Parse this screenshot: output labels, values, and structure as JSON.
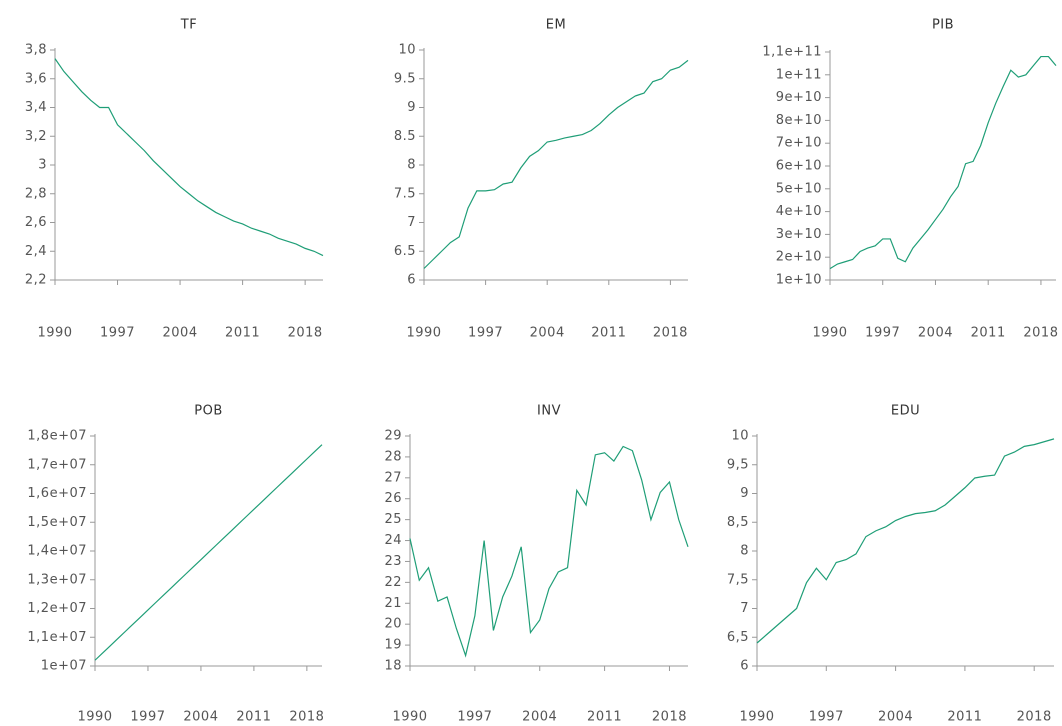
{
  "chart_data": [
    {
      "type": "line",
      "title": "TF",
      "color": "#1f9e77",
      "x": [
        1990,
        1991,
        1992,
        1993,
        1994,
        1995,
        1996,
        1997,
        1998,
        1999,
        2000,
        2001,
        2002,
        2003,
        2004,
        2005,
        2006,
        2007,
        2008,
        2009,
        2010,
        2011,
        2012,
        2013,
        2014,
        2015,
        2016,
        2017,
        2018,
        2019,
        2020
      ],
      "values": [
        3.74,
        3.65,
        3.58,
        3.51,
        3.45,
        3.4,
        3.4,
        3.28,
        3.22,
        3.16,
        3.1,
        3.03,
        2.97,
        2.91,
        2.85,
        2.8,
        2.75,
        2.71,
        2.67,
        2.64,
        2.61,
        2.59,
        2.56,
        2.54,
        2.52,
        2.49,
        2.47,
        2.45,
        2.42,
        2.4,
        2.37
      ],
      "xlim": [
        1990,
        2020
      ],
      "xticks": [
        1990,
        1997,
        2004,
        2011,
        2018
      ],
      "ylim": [
        2.2,
        3.8
      ],
      "yticks": [
        {
          "value": 2.2,
          "label": "2,2"
        },
        {
          "value": 2.4,
          "label": "2,4"
        },
        {
          "value": 2.6,
          "label": "2,6"
        },
        {
          "value": 2.8,
          "label": "2,8"
        },
        3,
        {
          "value": 3.2,
          "label": "3,2"
        },
        {
          "value": 3.4,
          "label": "3,4"
        },
        {
          "value": 3.6,
          "label": "3,6"
        },
        {
          "value": 3.8,
          "label": "3,8"
        }
      ]
    },
    {
      "type": "line",
      "title": "EM",
      "color": "#1f9e77",
      "x": [
        1990,
        1991,
        1992,
        1993,
        1994,
        1995,
        1996,
        1997,
        1998,
        1999,
        2000,
        2001,
        2002,
        2003,
        2004,
        2005,
        2006,
        2007,
        2008,
        2009,
        2010,
        2011,
        2012,
        2013,
        2014,
        2015,
        2016,
        2017,
        2018,
        2019,
        2020
      ],
      "values": [
        6.2,
        6.35,
        6.5,
        6.65,
        6.75,
        7.25,
        7.55,
        7.55,
        7.57,
        7.67,
        7.7,
        7.95,
        8.15,
        8.25,
        8.4,
        8.43,
        8.47,
        8.5,
        8.53,
        8.6,
        8.72,
        8.87,
        9.0,
        9.1,
        9.2,
        9.25,
        9.45,
        9.5,
        9.65,
        9.7,
        9.82
      ],
      "xlim": [
        1990,
        2020
      ],
      "xticks": [
        1990,
        1997,
        2004,
        2011,
        2018
      ],
      "ylim": [
        6,
        10
      ],
      "yticks": [
        6,
        6.5,
        7,
        7.5,
        8,
        8.5,
        9,
        9.5,
        10
      ]
    },
    {
      "type": "line",
      "title": "PIB",
      "color": "#1f9e77",
      "x": [
        1990,
        1991,
        1992,
        1993,
        1994,
        1995,
        1996,
        1997,
        1998,
        1999,
        2000,
        2001,
        2002,
        2003,
        2004,
        2005,
        2006,
        2007,
        2008,
        2009,
        2010,
        2011,
        2012,
        2013,
        2014,
        2015,
        2016,
        2017,
        2018,
        2019,
        2020
      ],
      "values": [
        15000000000,
        17000000000,
        18000000000,
        19000000000,
        22500000000,
        24000000000,
        25000000000,
        28000000000,
        28000000000,
        19500000000,
        18000000000,
        24000000000,
        28000000000,
        32000000000,
        36500000000,
        41000000000,
        46500000000,
        51000000000,
        61000000000,
        62000000000,
        69000000000,
        79000000000,
        87500000000,
        95000000000,
        102000000000,
        99000000000,
        100000000000,
        104000000000,
        108000000000,
        108000000000,
        104000000000
      ],
      "xlim": [
        1990,
        2020
      ],
      "xticks": [
        1990,
        1997,
        2004,
        2011,
        2018
      ],
      "ylim": [
        10000000000,
        110000000000
      ],
      "yticks": [
        {
          "value": 10000000000,
          "label": "1e+10"
        },
        {
          "value": 20000000000,
          "label": "2e+10"
        },
        {
          "value": 30000000000,
          "label": "3e+10"
        },
        {
          "value": 40000000000,
          "label": "4e+10"
        },
        {
          "value": 50000000000,
          "label": "5e+10"
        },
        {
          "value": 60000000000,
          "label": "6e+10"
        },
        {
          "value": 70000000000,
          "label": "7e+10"
        },
        {
          "value": 80000000000,
          "label": "8e+10"
        },
        {
          "value": 90000000000,
          "label": "9e+10"
        },
        {
          "value": 100000000000,
          "label": "1e+11"
        },
        {
          "value": 110000000000,
          "label": "1,1e+11"
        }
      ]
    },
    {
      "type": "line",
      "title": "POB",
      "color": "#1f9e77",
      "x": [
        1990,
        1991,
        1992,
        1993,
        1994,
        1995,
        1996,
        1997,
        1998,
        1999,
        2000,
        2001,
        2002,
        2003,
        2004,
        2005,
        2006,
        2007,
        2008,
        2009,
        2010,
        2011,
        2012,
        2013,
        2014,
        2015,
        2016,
        2017,
        2018,
        2019,
        2020
      ],
      "values": [
        10200000,
        10450000,
        10700000,
        10950000,
        11200000,
        11450000,
        11700000,
        11950000,
        12200000,
        12450000,
        12700000,
        12950000,
        13200000,
        13450000,
        13700000,
        13950000,
        14200000,
        14450000,
        14700000,
        14950000,
        15200000,
        15450000,
        15700000,
        15950000,
        16200000,
        16450000,
        16700000,
        16950000,
        17200000,
        17450000,
        17700000
      ],
      "xlim": [
        1990,
        2020
      ],
      "xticks": [
        1990,
        1997,
        2004,
        2011,
        2018
      ],
      "ylim": [
        10000000,
        18000000
      ],
      "yticks": [
        {
          "value": 10000000,
          "label": "1e+07"
        },
        {
          "value": 11000000,
          "label": "1,1e+07"
        },
        {
          "value": 12000000,
          "label": "1,2e+07"
        },
        {
          "value": 13000000,
          "label": "1,3e+07"
        },
        {
          "value": 14000000,
          "label": "1,4e+07"
        },
        {
          "value": 15000000,
          "label": "1,5e+07"
        },
        {
          "value": 16000000,
          "label": "1,6e+07"
        },
        {
          "value": 17000000,
          "label": "1,7e+07"
        },
        {
          "value": 18000000,
          "label": "1,8e+07"
        }
      ]
    },
    {
      "type": "line",
      "title": "INV",
      "color": "#1f9e77",
      "x": [
        1990,
        1991,
        1992,
        1993,
        1994,
        1995,
        1996,
        1997,
        1998,
        1999,
        2000,
        2001,
        2002,
        2003,
        2004,
        2005,
        2006,
        2007,
        2008,
        2009,
        2010,
        2011,
        2012,
        2013,
        2014,
        2015,
        2016,
        2017,
        2018,
        2019,
        2020
      ],
      "values": [
        24.1,
        22.1,
        22.7,
        21.1,
        21.3,
        19.8,
        18.5,
        20.4,
        24.0,
        19.7,
        21.3,
        22.3,
        23.7,
        19.6,
        20.2,
        21.7,
        22.5,
        22.7,
        26.4,
        25.7,
        28.1,
        28.2,
        27.8,
        28.5,
        28.3,
        26.9,
        25.0,
        26.3,
        26.8,
        25.0,
        23.7
      ],
      "xlim": [
        1990,
        2020
      ],
      "xticks": [
        1990,
        1997,
        2004,
        2011,
        2018
      ],
      "ylim": [
        18,
        29
      ],
      "yticks": [
        18,
        19,
        20,
        21,
        22,
        23,
        24,
        25,
        26,
        27,
        28,
        29
      ]
    },
    {
      "type": "line",
      "title": "EDU",
      "color": "#1f9e77",
      "x": [
        1990,
        1991,
        1992,
        1993,
        1994,
        1995,
        1996,
        1997,
        1998,
        1999,
        2000,
        2001,
        2002,
        2003,
        2004,
        2005,
        2006,
        2007,
        2008,
        2009,
        2010,
        2011,
        2012,
        2013,
        2014,
        2015,
        2016,
        2017,
        2018,
        2019,
        2020
      ],
      "values": [
        6.4,
        6.55,
        6.7,
        6.85,
        7.0,
        7.45,
        7.7,
        7.5,
        7.8,
        7.85,
        7.95,
        8.25,
        8.35,
        8.42,
        8.53,
        8.6,
        8.65,
        8.67,
        8.7,
        8.8,
        8.95,
        9.1,
        9.27,
        9.3,
        9.32,
        9.65,
        9.72,
        9.82,
        9.85,
        9.9,
        9.95
      ],
      "xlim": [
        1990,
        2020
      ],
      "xticks": [
        1990,
        1997,
        2004,
        2011,
        2018
      ],
      "ylim": [
        6,
        10
      ],
      "yticks": [
        6,
        {
          "value": 6.5,
          "label": "6,5"
        },
        7,
        {
          "value": 7.5,
          "label": "7,5"
        },
        8,
        {
          "value": 8.5,
          "label": "8,5"
        },
        9,
        {
          "value": 9.5,
          "label": "9,5"
        },
        10
      ]
    }
  ]
}
